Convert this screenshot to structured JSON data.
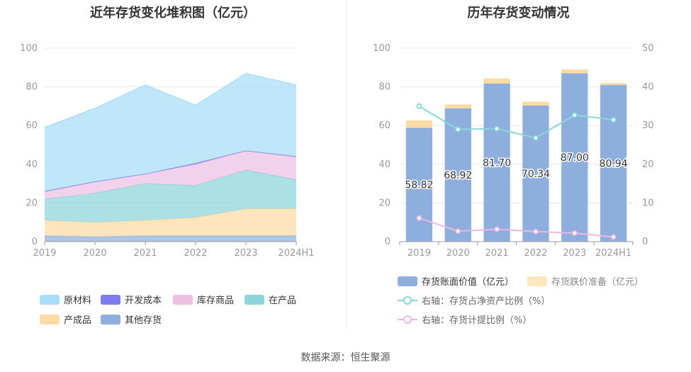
{
  "left": {
    "title": "近年存货变化堆积图（亿元）",
    "legend": [
      "原材料",
      "开发成本",
      "库存商品",
      "在产品",
      "产成品",
      "其他存货"
    ]
  },
  "right": {
    "title": "历年存货变动情况",
    "legend": [
      "存货账面价值（亿元）",
      "存货跌价准备（亿元）",
      "右轴：存货占净资产比例（%）",
      "右轴：存货计提比例（%）"
    ]
  },
  "source": "数据来源：恒生聚源",
  "colors": {
    "raw_materials": "#a8dcf7",
    "development_cost": "#7c7cf0",
    "finished_goods_stock": "#ecc0e2",
    "work_in_progress": "#8ad6da",
    "products": "#fddba3",
    "other": "#8eaedd",
    "book_value": "#8eaedd",
    "impairment": "#fddba3",
    "ratio_net_assets": "#8ad6da",
    "provision_ratio": "#ecb8e0",
    "grid": "#e4e7ee",
    "axis_text": "#999999"
  },
  "chart_data": [
    {
      "type": "area",
      "stacked": true,
      "x": [
        "2019",
        "2020",
        "2021",
        "2022",
        "2023",
        "2024H1"
      ],
      "ylim": [
        0,
        100
      ],
      "yticks": [
        0,
        20,
        40,
        60,
        80,
        100
      ],
      "series": [
        {
          "name": "其他存货",
          "values": [
            3,
            2.5,
            3,
            3,
            3,
            3
          ]
        },
        {
          "name": "产成品",
          "values": [
            8,
            7.5,
            8,
            9.5,
            14,
            14
          ]
        },
        {
          "name": "在产品",
          "values": [
            11,
            15,
            19,
            16.5,
            20,
            15
          ]
        },
        {
          "name": "库存商品",
          "values": [
            4,
            6,
            5,
            11,
            10,
            12
          ]
        },
        {
          "name": "开发成本",
          "values": [
            0,
            0,
            0,
            0.5,
            0,
            0
          ]
        },
        {
          "name": "原材料",
          "values": [
            33,
            38,
            46,
            30,
            40,
            37
          ]
        }
      ],
      "legend_position": "bottom"
    },
    {
      "type": "bar",
      "stacked": true,
      "categories": [
        "2019",
        "2020",
        "2021",
        "2022",
        "2023",
        "2024H1"
      ],
      "ylim": [
        0,
        100
      ],
      "yticks": [
        0,
        20,
        40,
        60,
        80,
        100
      ],
      "y2lim": [
        0,
        50
      ],
      "y2ticks": [
        0,
        10,
        20,
        30,
        40,
        50
      ],
      "series": [
        {
          "name": "存货账面价值（亿元）",
          "axis": "left",
          "values": [
            58.82,
            68.92,
            81.7,
            70.34,
            87.0,
            80.94
          ],
          "labels": [
            "58.82",
            "68.92",
            "81.70",
            "70.34",
            "87.00",
            "80.94"
          ]
        },
        {
          "name": "存货跌价准备（亿元）",
          "axis": "left",
          "values": [
            3.8,
            2.0,
            2.7,
            2.0,
            2.0,
            1.0
          ]
        },
        {
          "name": "右轴：存货占净资产比例（%）",
          "axis": "right",
          "type": "line",
          "values": [
            35,
            29,
            29.2,
            26.8,
            32.7,
            31.5
          ]
        },
        {
          "name": "右轴：存货计提比例（%）",
          "axis": "right",
          "type": "line",
          "values": [
            6.1,
            2.7,
            3.2,
            2.6,
            2.2,
            1.2
          ]
        }
      ],
      "legend_position": "bottom"
    }
  ]
}
